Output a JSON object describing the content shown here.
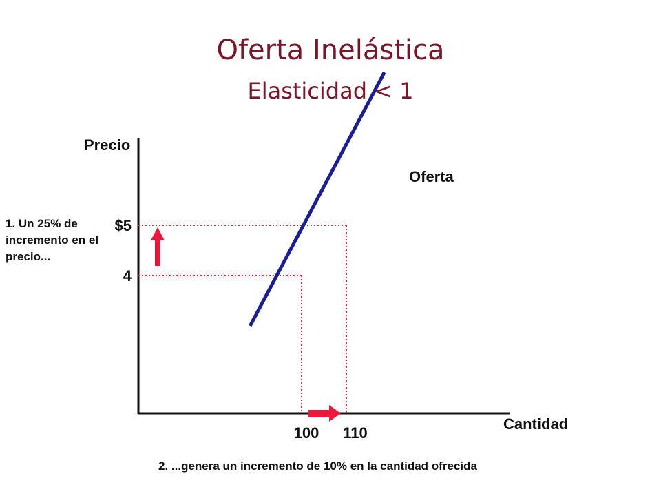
{
  "chart_data": {
    "type": "line",
    "title": "Oferta Inelástica",
    "subtitle": "Elasticidad < 1",
    "xlabel": "Cantidad",
    "ylabel": "Precio",
    "series": [
      {
        "name": "Oferta",
        "x": [
          88.5,
          118.5
        ],
        "y": [
          3.0,
          8.04
        ]
      }
    ],
    "reference_points": [
      {
        "x": 100,
        "y": 4,
        "x_label": "100",
        "y_label": "4"
      },
      {
        "x": 110,
        "y": 5,
        "x_label": "110",
        "y_label": "$5"
      }
    ],
    "annotations": [
      "1. Un 25% de incremento en el precio...",
      "2. ...genera un incremento de 10% en la cantidad ofrecida"
    ],
    "colors": {
      "title": "#7b1628",
      "line": "#1b1f8f",
      "guide": "#e0283e",
      "arrow": "#e8193a"
    }
  }
}
